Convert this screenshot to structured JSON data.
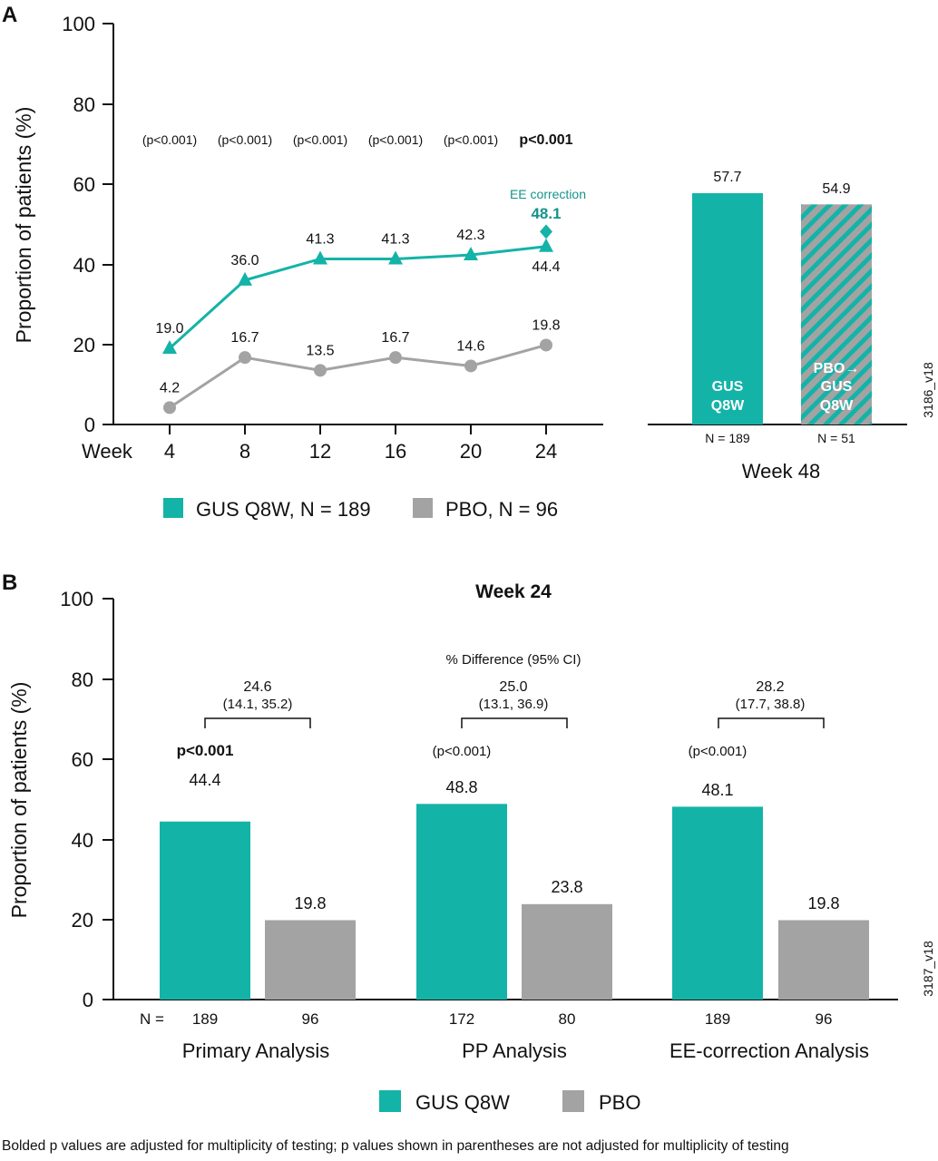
{
  "panel_a": {
    "letter": "A",
    "ylabel": "Proportion of patients (%)",
    "y_ticks": [
      "0",
      "20",
      "40",
      "60",
      "80",
      "100"
    ],
    "x_prefix": "Week",
    "x_ticks": [
      "4",
      "8",
      "12",
      "16",
      "20",
      "24"
    ],
    "pvalues": [
      "(p<0.001)",
      "(p<0.001)",
      "(p<0.001)",
      "(p<0.001)",
      "(p<0.001)",
      "p<0.001"
    ],
    "ee_label": "EE correction",
    "ee_value": "48.1",
    "legend": [
      {
        "label": "GUS Q8W, N = 189",
        "color": "#14b3a8"
      },
      {
        "label": "PBO, N = 96",
        "color": "#a3a3a3"
      }
    ],
    "bars48": {
      "title": "Week 48",
      "bars": [
        {
          "value": "57.7",
          "inner_lines": [
            "GUS",
            "Q8W"
          ],
          "n": "N = 189"
        },
        {
          "value": "54.9",
          "inner_lines": [
            "PBO→",
            "GUS",
            "Q8W"
          ],
          "n": "N = 51"
        }
      ]
    },
    "tag": "3186_v18"
  },
  "panel_b": {
    "letter": "B",
    "title": "Week 24",
    "ylabel": "Proportion of patients (%)",
    "y_ticks": [
      "0",
      "20",
      "40",
      "60",
      "80",
      "100"
    ],
    "diff_header": "% Difference (95% CI)",
    "n_prefix": "N =",
    "groups": [
      {
        "name": "Primary Analysis",
        "diff": "24.6",
        "ci": "(14.1, 35.2)",
        "p": "p<0.001",
        "gus_label": "44.4",
        "pbo_label": "19.8",
        "n_gus": "189",
        "n_pbo": "96"
      },
      {
        "name": "PP Analysis",
        "diff": "25.0",
        "ci": "(13.1, 36.9)",
        "p": "(p<0.001)",
        "gus_label": "48.8",
        "pbo_label": "23.8",
        "n_gus": "172",
        "n_pbo": "80"
      },
      {
        "name": "EE-correction Analysis",
        "diff": "28.2",
        "ci": "(17.7, 38.8)",
        "p": "(p<0.001)",
        "gus_label": "48.1",
        "pbo_label": "19.8",
        "n_gus": "189",
        "n_pbo": "96"
      }
    ],
    "legend": [
      {
        "label": "GUS Q8W",
        "color": "#14b3a8"
      },
      {
        "label": "PBO",
        "color": "#a3a3a3"
      }
    ],
    "tag": "3187_v18"
  },
  "footnote": "Bolded p values are adjusted for multiplicity of testing; p values shown in parentheses are not adjusted for multiplicity of testing",
  "colors": {
    "gus": "#14b3a8",
    "pbo": "#a3a3a3",
    "hatch": "#14b3a8"
  },
  "chart_data": [
    {
      "type": "line",
      "x": [
        4,
        8,
        12,
        16,
        20,
        24
      ],
      "series": [
        {
          "name": "GUS Q8W, N = 189",
          "values": [
            19.0,
            36.0,
            41.3,
            41.3,
            42.3,
            44.4
          ],
          "marker": "triangle"
        },
        {
          "name": "PBO, N = 96",
          "values": [
            4.2,
            16.7,
            13.5,
            16.7,
            14.6,
            19.8
          ],
          "marker": "circle"
        }
      ],
      "extra_points": [
        {
          "label": "EE correction",
          "x": 24,
          "y": 48.1,
          "marker": "diamond"
        }
      ],
      "xlabel": "Week",
      "ylabel": "Proportion of patients (%)",
      "ylim": [
        0,
        100
      ],
      "grid": false
    },
    {
      "type": "bar",
      "categories": [
        "GUS Q8W",
        "PBO→ GUS Q8W"
      ],
      "values": [
        57.7,
        54.9
      ],
      "n": [
        "N = 189",
        "N = 51"
      ],
      "xlabel": "Week 48",
      "ylim": [
        0,
        100
      ]
    },
    {
      "type": "bar",
      "title": "Week 24",
      "categories": [
        "Primary Analysis",
        "PP Analysis",
        "EE-correction Analysis"
      ],
      "series": [
        {
          "name": "GUS Q8W",
          "values": [
            44.4,
            48.8,
            48.1
          ]
        },
        {
          "name": "PBO",
          "values": [
            19.8,
            23.8,
            19.8
          ]
        }
      ],
      "ylabel": "Proportion of patients (%)",
      "ylim": [
        0,
        100
      ],
      "legend": "bottom"
    }
  ]
}
